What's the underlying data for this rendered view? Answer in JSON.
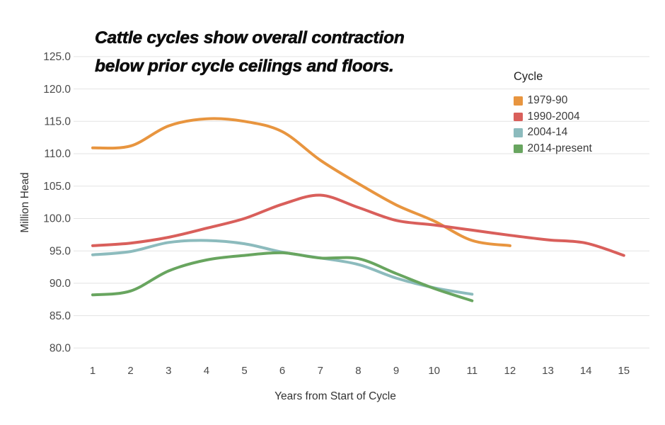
{
  "title": {
    "line1": "Cattle cycles show overall contraction",
    "line2": "below prior cycle ceilings and floors."
  },
  "chart_data": {
    "type": "line",
    "title": "Cattle cycles show overall contraction below prior cycle ceilings and floors.",
    "xlabel": "Years from Start of Cycle",
    "ylabel": "Million Head",
    "legend_title": "Cycle",
    "legend_position": "top-right",
    "grid": "horizontal",
    "grid_color": "#e3e3e3",
    "tick_label_color": "#4a4a4a",
    "ylim": [
      80,
      125
    ],
    "y_ticks": [
      "125.0",
      "120.0",
      "115.0",
      "110.0",
      "105.0",
      "100.0",
      "95.0",
      "90.0",
      "85.0",
      "80.0"
    ],
    "x": [
      1,
      2,
      3,
      4,
      5,
      6,
      7,
      8,
      9,
      10,
      11,
      12,
      13,
      14,
      15
    ],
    "series": [
      {
        "name": "1979-90",
        "color": "#E8953F",
        "values": [
          110.9,
          111.2,
          114.3,
          115.4,
          115.0,
          113.4,
          109.0,
          105.4,
          102.1,
          99.6,
          96.6,
          95.8
        ]
      },
      {
        "name": "1990-2004",
        "color": "#D95F5B",
        "values": [
          95.8,
          96.2,
          97.1,
          98.5,
          100.0,
          102.2,
          103.6,
          101.7,
          99.7,
          99.0,
          98.2,
          97.4,
          96.7,
          96.2,
          94.3
        ]
      },
      {
        "name": "2004-14",
        "color": "#8CBBBD",
        "values": [
          94.4,
          94.9,
          96.3,
          96.6,
          96.1,
          94.8,
          93.9,
          92.9,
          90.8,
          89.3,
          88.3
        ]
      },
      {
        "name": "2014-present",
        "color": "#68A55F",
        "values": [
          88.2,
          88.8,
          91.9,
          93.6,
          94.3,
          94.7,
          93.9,
          93.8,
          91.5,
          89.2,
          87.3
        ]
      }
    ]
  }
}
